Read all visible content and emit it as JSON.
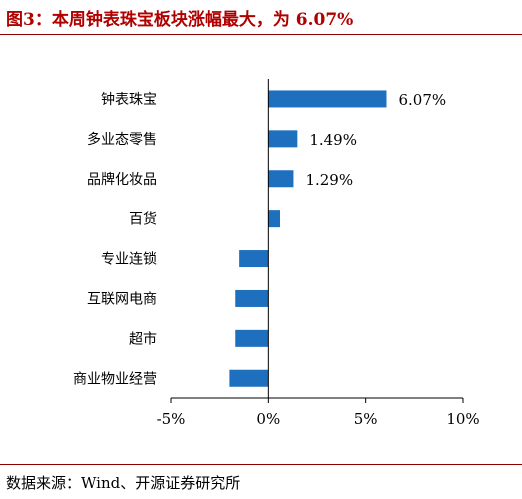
{
  "title": "图3：本周钟表珠宝板块涨幅最大，为 6.07%",
  "source": "数据来源：Wind、开源证券研究所",
  "colors": {
    "bar": "#1f6fbf",
    "title": "#b00000",
    "rule": "#8b0000",
    "axis": "#000000"
  },
  "chart_data": {
    "type": "bar",
    "orientation": "horizontal",
    "categories": [
      "钟表珠宝",
      "多业态零售",
      "品牌化妆品",
      "百货",
      "专业连锁",
      "互联网电商",
      "超市",
      "商业物业经营"
    ],
    "values": [
      6.07,
      1.49,
      1.29,
      0.6,
      -1.5,
      -1.7,
      -1.7,
      -2.0
    ],
    "data_labels": [
      "6.07%",
      "1.49%",
      "1.29%",
      "",
      "",
      "",
      "",
      ""
    ],
    "xlim": [
      -5,
      10
    ],
    "xticks": [
      -5,
      0,
      5,
      10
    ],
    "xtick_labels": [
      "-5%",
      "0%",
      "5%",
      "10%"
    ],
    "xlabel": "",
    "ylabel": "",
    "grid": false,
    "legend": "none"
  }
}
